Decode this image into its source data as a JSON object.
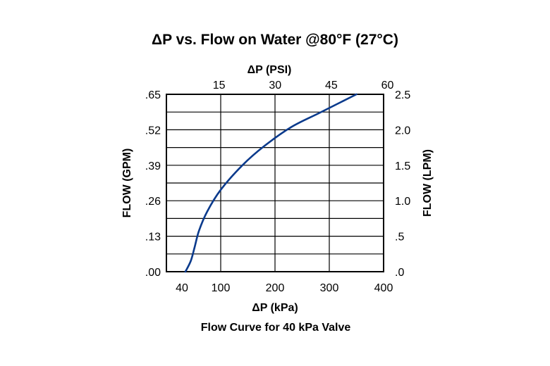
{
  "chart_data": {
    "type": "line",
    "title": "ΔP vs. Flow on Water @80°F (27°C)",
    "caption": "Flow Curve for 40 kPa Valve",
    "xlabel": "ΔP (kPa)",
    "x2label": "ΔP (PSI)",
    "ylabel": "FLOW (GPM)",
    "y2label": "FLOW (LPM)",
    "xlim": [
      0,
      400
    ],
    "ylim": [
      0,
      0.65
    ],
    "grid": true,
    "x_ticks": [
      {
        "label": "40",
        "value": 40
      },
      {
        "label": "100",
        "value": 100
      },
      {
        "label": "200",
        "value": 200
      },
      {
        "label": "300",
        "value": 300
      },
      {
        "label": "400",
        "value": 400
      }
    ],
    "x2_ticks": [
      {
        "label": "15",
        "value": 103.4
      },
      {
        "label": "30",
        "value": 206.8
      },
      {
        "label": "45",
        "value": 310.3
      },
      {
        "label": "60",
        "value": 413.7
      }
    ],
    "y_ticks": [
      {
        "label": ".00",
        "value": 0
      },
      {
        "label": ".13",
        "value": 0.13
      },
      {
        "label": ".26",
        "value": 0.26
      },
      {
        "label": ".39",
        "value": 0.39
      },
      {
        "label": ".52",
        "value": 0.52
      },
      {
        "label": ".65",
        "value": 0.65
      }
    ],
    "y2_ticks": [
      {
        "label": ".0",
        "value": 0
      },
      {
        "label": ".5",
        "value": 0.13
      },
      {
        "label": "1.0",
        "value": 0.26
      },
      {
        "label": "1.5",
        "value": 0.39
      },
      {
        "label": "2.0",
        "value": 0.52
      },
      {
        "label": "2.5",
        "value": 0.65
      }
    ],
    "series": [
      {
        "color": "#0a3a8c",
        "x": [
          35,
          45,
          52,
          60,
          75,
          100,
          140,
          180,
          230,
          280,
          320,
          350
        ],
        "y": [
          0.0,
          0.04,
          0.09,
          0.15,
          0.22,
          0.3,
          0.39,
          0.46,
          0.53,
          0.58,
          0.62,
          0.65
        ]
      }
    ]
  }
}
